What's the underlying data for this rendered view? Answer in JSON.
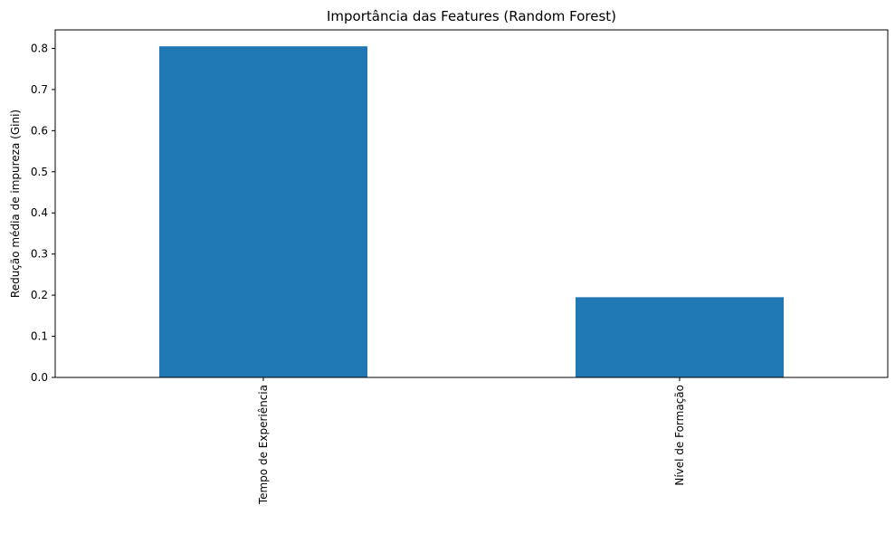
{
  "chart_data": {
    "type": "bar",
    "title": "Importância das Features (Random Forest)",
    "xlabel": "",
    "ylabel": "Redução média de impureza (Gini)",
    "categories": [
      "Tempo de Experiência",
      "Nível de Formação"
    ],
    "values": [
      0.805,
      0.195
    ],
    "ylim": [
      0,
      0.845
    ],
    "yticks": [
      0.0,
      0.1,
      0.2,
      0.3,
      0.4,
      0.5,
      0.6,
      0.7,
      0.8
    ],
    "ytick_labels": [
      "0.0",
      "0.1",
      "0.2",
      "0.3",
      "0.4",
      "0.5",
      "0.6",
      "0.7",
      "0.8"
    ],
    "bar_color": "#1f77b4",
    "grid": false,
    "legend": "none"
  }
}
